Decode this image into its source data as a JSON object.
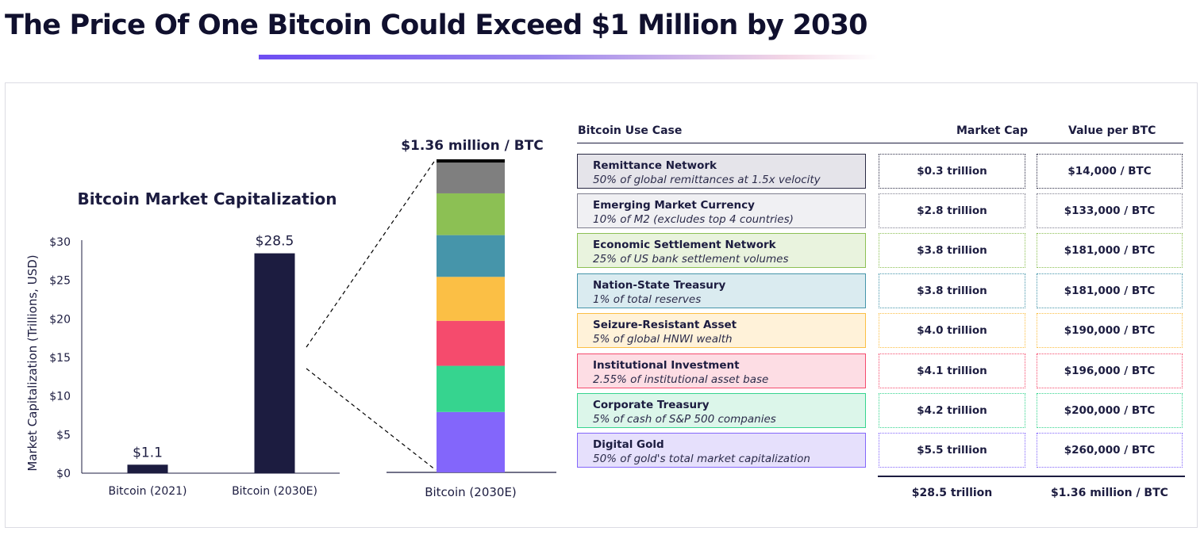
{
  "title": "The Price Of One Bitcoin Could Exceed $1 Million by 2030",
  "colors": {
    "navy": "#1c1c40",
    "accent": "#6d4df2"
  },
  "chart_data": [
    {
      "type": "bar",
      "title": "Bitcoin Market Capitalization",
      "ylabel": "Market Capitalization (Trillions, USD)",
      "xlabel": "",
      "categories": [
        "Bitcoin (2021)",
        "Bitcoin (2030E)"
      ],
      "values": [
        1.1,
        28.5
      ],
      "data_labels": [
        "$1.1",
        "$28.5"
      ],
      "ylim": [
        0,
        30
      ],
      "yticks": [
        0,
        5,
        10,
        15,
        20,
        25,
        30
      ],
      "ytick_labels": [
        "$0",
        "$5",
        "$10",
        "$15",
        "$20",
        "$25",
        "$30"
      ],
      "bar_color": "#1c1c40",
      "grid": false
    },
    {
      "type": "bar",
      "stacked": true,
      "title": "",
      "categories": [
        "Bitcoin (2030E)"
      ],
      "top_label": "$1.36 million / BTC",
      "series": [
        {
          "name": "Digital Gold",
          "values": [
            5.5
          ],
          "color": "#8366fb"
        },
        {
          "name": "Corporate Treasury",
          "values": [
            4.2
          ],
          "color": "#36d48f"
        },
        {
          "name": "Institutional Investment",
          "values": [
            4.1
          ],
          "color": "#f54b6d"
        },
        {
          "name": "Seizure-Resistant Asset",
          "values": [
            4.0
          ],
          "color": "#fbbf45"
        },
        {
          "name": "Nation-State Treasury",
          "values": [
            3.8
          ],
          "color": "#4695aa"
        },
        {
          "name": "Economic Settlement Network",
          "values": [
            3.8
          ],
          "color": "#8cc054"
        },
        {
          "name": "Emerging Market Currency",
          "values": [
            2.8
          ],
          "color": "#7f7f7f"
        },
        {
          "name": "Remittance Network",
          "values": [
            0.3
          ],
          "color": "#000000"
        }
      ]
    }
  ],
  "table": {
    "headers": {
      "use_case": "Bitcoin Use Case",
      "market_cap": "Market Cap",
      "value_per_btc": "Value per BTC"
    },
    "rows": [
      {
        "name": "Remittance Network",
        "desc": "50% of global remittances at 1.5x velocity",
        "cap": "$0.3 trillion",
        "btc": "$14,000 / BTC",
        "border": "#2a2a44",
        "fill": "#e5e4ea"
      },
      {
        "name": "Emerging Market Currency",
        "desc": "10% of M2 (excludes top 4 countries)",
        "cap": "$2.8 trillion",
        "btc": "$133,000 / BTC",
        "border": "#7f7f8f",
        "fill": "#f0f0f3"
      },
      {
        "name": "Economic Settlement Network",
        "desc": "25% of US bank settlement volumes",
        "cap": "$3.8 trillion",
        "btc": "$181,000 / BTC",
        "border": "#8cc054",
        "fill": "#e9f3de"
      },
      {
        "name": "Nation-State Treasury",
        "desc": "1% of total reserves",
        "cap": "$3.8 trillion",
        "btc": "$181,000 / BTC",
        "border": "#4695aa",
        "fill": "#daebf0"
      },
      {
        "name": "Seizure-Resistant Asset",
        "desc": "5% of global HNWI wealth",
        "cap": "$4.0 trillion",
        "btc": "$190,000 / BTC",
        "border": "#fbbf45",
        "fill": "#fff2d9"
      },
      {
        "name": "Institutional Investment",
        "desc": "2.55% of institutional asset base",
        "cap": "$4.1 trillion",
        "btc": "$196,000 / BTC",
        "border": "#f54b6d",
        "fill": "#fddde4"
      },
      {
        "name": "Corporate Treasury",
        "desc": "5% of cash of S&P 500 companies",
        "cap": "$4.2 trillion",
        "btc": "$200,000 / BTC",
        "border": "#36d48f",
        "fill": "#dcf6ea"
      },
      {
        "name": "Digital Gold",
        "desc": "50% of gold's total market capitalization",
        "cap": "$5.5 trillion",
        "btc": "$260,000 / BTC",
        "border": "#8366fb",
        "fill": "#e6e0fc"
      }
    ],
    "totals": {
      "cap": "$28.5 trillion",
      "btc": "$1.36 million / BTC"
    }
  }
}
